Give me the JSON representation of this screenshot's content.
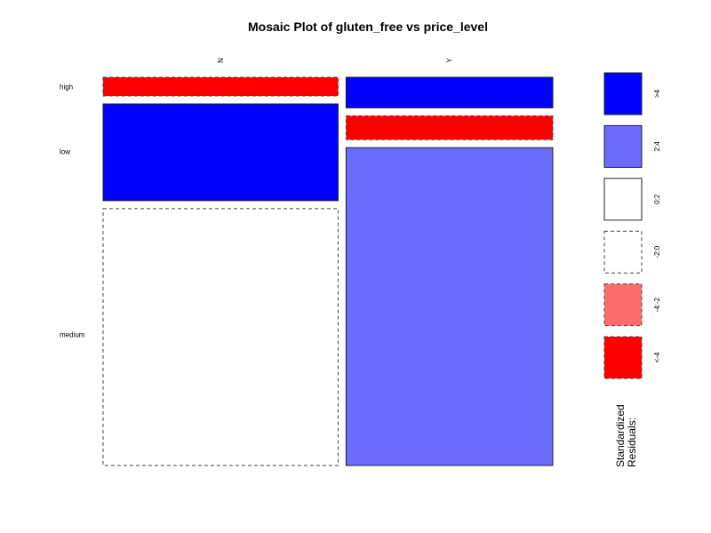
{
  "chart_data": {
    "type": "mosaic",
    "title": "Mosaic Plot of gluten_free vs price_level",
    "columns": [
      {
        "label": "N",
        "width_fraction": 0.532
      },
      {
        "label": "Y",
        "width_fraction": 0.468
      }
    ],
    "rows": [
      "high",
      "low",
      "medium"
    ],
    "cells": [
      {
        "column": "N",
        "row": "high",
        "proportion": 0.05,
        "residual": "<-4"
      },
      {
        "column": "N",
        "row": "low",
        "proportion": 0.26,
        "residual": ">4"
      },
      {
        "column": "N",
        "row": "medium",
        "proportion": 0.69,
        "residual": "-2:0"
      },
      {
        "column": "Y",
        "row": "high",
        "proportion": 0.082,
        "residual": ">4"
      },
      {
        "column": "Y",
        "row": "low",
        "proportion": 0.064,
        "residual": "<-4"
      },
      {
        "column": "Y",
        "row": "medium",
        "proportion": 0.854,
        "residual": "2:4"
      }
    ],
    "legend": {
      "title_lines": [
        "Standardized",
        "Residuals:"
      ],
      "items": [
        {
          "label": ">4",
          "color": "#0000ff",
          "dashed": false
        },
        {
          "label": "2:4",
          "color": "#6b6bff",
          "dashed": false
        },
        {
          "label": "0:2",
          "color": "#ffffff",
          "dashed": false
        },
        {
          "label": "-2:0",
          "color": "#ffffff",
          "dashed": true
        },
        {
          "label": "-4:-2",
          "color": "#ff6b6b",
          "dashed": true
        },
        {
          "label": "<-4",
          "color": "#ff0000",
          "dashed": true
        }
      ]
    }
  }
}
